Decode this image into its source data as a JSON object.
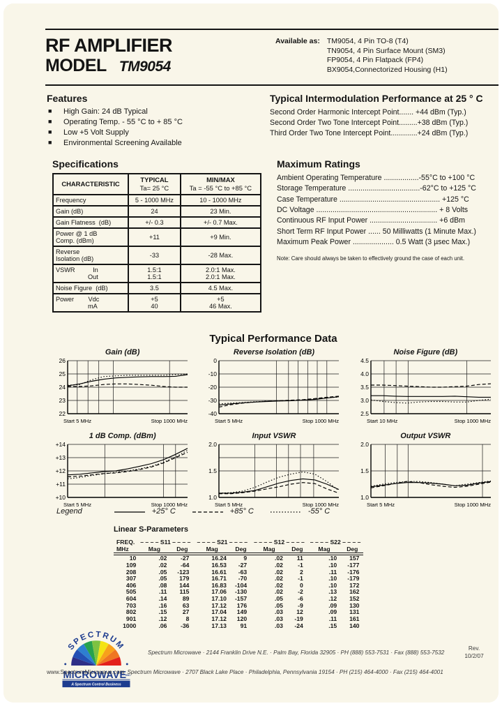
{
  "header": {
    "title_line1": "RF AMPLIFIER",
    "title_line2": "MODEL",
    "model": "TM9054",
    "available_label": "Available as:",
    "available": [
      "TM9054, 4 Pin TO-8 (T4)",
      "TN9054, 4 Pin Surface Mount (SM3)",
      "FP9054, 4 Pin Flatpack (FP4)",
      "BX9054,Connectorized Housing (H1)"
    ]
  },
  "features": {
    "title": "Features",
    "items": [
      "High Gain: 24 dB Typical",
      "Operating Temp. - 55 °C to + 85 °C",
      "Low +5 Volt Supply",
      "Environmental Screening Available"
    ]
  },
  "intermod": {
    "title": "Typical Intermodulation Performance at 25 ° C",
    "lines": [
      "Second Order Harmonic Intercept Point....... +44 dBm (Typ.)",
      "Second Order Two Tone Intercept Point.........+38 dBm (Typ.)",
      "Third Order Two Tone Intercept Point.............+24 dBm (Typ.)"
    ]
  },
  "specifications": {
    "title": "Specifications",
    "col1": "CHARACTERISTIC",
    "col2a": "TYPICAL",
    "col2b": "Ta= 25 °C",
    "col3a": "MIN/MAX",
    "col3b": "Ta = -55 °C to +85 °C",
    "rows": [
      {
        "c": [
          "Frequency"
        ],
        "t": [
          "5 - 1000 MHz"
        ],
        "m": [
          "10 - 1000 MHz"
        ]
      },
      {
        "c": [
          "Gain (dB)"
        ],
        "t": [
          "24"
        ],
        "m": [
          "23 Min."
        ]
      },
      {
        "c": [
          "Gain Flatness  (dB)"
        ],
        "t": [
          "+/- 0.3"
        ],
        "m": [
          "+/- 0.7 Max."
        ]
      },
      {
        "c": [
          "Power @ 1 dB",
          "Comp. (dBm)"
        ],
        "t": [
          "+11"
        ],
        "m": [
          "+9 Min."
        ]
      },
      {
        "c": [
          "Reverse",
          "Isolation (dB)"
        ],
        "t": [
          "-33"
        ],
        "m": [
          "-28 Max."
        ]
      },
      {
        "c": [
          "VSWR          In",
          "                  Out"
        ],
        "t": [
          "1.5:1",
          "1.5:1"
        ],
        "m": [
          "2.0:1 Max.",
          "2.0:1 Max."
        ]
      },
      {
        "c": [
          "Noise Figure  (dB)"
        ],
        "t": [
          "3.5"
        ],
        "m": [
          "4.5 Max."
        ]
      },
      {
        "c": [
          "Power        Vdc",
          "                  mA"
        ],
        "t": [
          "+5",
          "40"
        ],
        "m": [
          "+5",
          "46 Max."
        ]
      }
    ]
  },
  "ratings": {
    "title": "Maximum Ratings",
    "lines": [
      "Ambient Operating Temperature .................-55°C to +100 °C",
      "Storage Temperature ...................................-62°C to +125 °C",
      "Case Temperature ................................................. +125 °C",
      "DC Voltage ........................................................... + 8 Volts",
      "Continuous RF Input Power ................................. +6 dBm",
      "Short Term RF Input Power ...... 50 Milliwatts (1 Minute Max.)",
      "Maximum Peak Power .................... 0.5 Watt (3 µsec Max.)"
    ],
    "note": "Note: Care should always be taken to effectively ground the case of each unit."
  },
  "performance": {
    "title": "Typical Performance Data",
    "legend": {
      "label": "Legend",
      "items": [
        {
          "style": "solid",
          "label": "+25° C"
        },
        {
          "style": "dash",
          "label": "+85° C"
        },
        {
          "style": "dot",
          "label": "-55° C"
        }
      ]
    }
  },
  "chart_data": [
    {
      "type": "line",
      "title": "Gain (dB)",
      "ylim": [
        22,
        26
      ],
      "xstart": "Start 5 MHz",
      "xstop": "Stop 1000 MHz",
      "yticks": [
        {
          "v": 26,
          "l": "26"
        },
        {
          "v": 25,
          "l": "25"
        },
        {
          "v": 24,
          "l": "24"
        },
        {
          "v": 23,
          "l": "23"
        },
        {
          "v": 22,
          "l": "22"
        }
      ],
      "vgrid": [
        0.08,
        0.17,
        0.26,
        0.38,
        0.85
      ],
      "series": [
        {
          "name": "+25C",
          "style": "solid",
          "y": [
            24.1,
            24.25,
            24.45,
            24.6,
            24.7,
            24.75,
            24.78,
            24.8,
            24.8,
            24.82,
            24.95
          ]
        },
        {
          "name": "+85C",
          "style": "dash",
          "y": [
            24.05,
            24.05,
            24.1,
            24.2,
            24.25,
            24.25,
            24.2,
            24.15,
            24.05,
            24.0,
            24.0
          ]
        },
        {
          "name": "-55C",
          "style": "dot",
          "y": [
            24.15,
            24.2,
            24.55,
            24.8,
            24.85,
            24.9,
            24.9,
            24.9,
            24.9,
            24.95,
            25.0
          ]
        }
      ]
    },
    {
      "type": "line",
      "title": "Reverse Isolation (dB)",
      "ylim": [
        -40,
        0
      ],
      "xstart": "Start 5 MHz",
      "xstop": "Stop 1000 MHz",
      "yticks": [
        {
          "v": 0,
          "l": "0"
        },
        {
          "v": -10,
          "l": "-10"
        },
        {
          "v": -20,
          "l": "-20"
        },
        {
          "v": -30,
          "l": "-30"
        },
        {
          "v": -40,
          "l": "-40"
        }
      ],
      "vgrid": [
        0.48,
        0.58,
        0.66,
        0.74,
        0.82,
        0.9
      ],
      "series": [
        {
          "name": "+25C",
          "style": "solid",
          "y": [
            -33.5,
            -32.6,
            -31.8,
            -31.2,
            -30.8,
            -30.4,
            -30.2,
            -29.8,
            -29.2,
            -28.2,
            -27.2
          ]
        },
        {
          "name": "+85C",
          "style": "dash",
          "y": [
            -35.0,
            -33.2,
            -32.0,
            -31.2,
            -30.6,
            -30.2,
            -29.8,
            -29.4,
            -28.6,
            -27.6,
            -26.8
          ]
        },
        {
          "name": "-55C",
          "style": "dot",
          "y": [
            -32.6,
            -32.0,
            -31.6,
            -31.0,
            -30.6,
            -30.4,
            -30.0,
            -29.6,
            -28.8,
            -28.0,
            -27.4
          ]
        }
      ]
    },
    {
      "type": "line",
      "title": "Noise Figure (dB)",
      "ylim": [
        2.5,
        4.5
      ],
      "xstart": "Start 10 MHz",
      "xstop": "Stop 1000 MHz",
      "yticks": [
        {
          "v": 4.5,
          "l": "4.5"
        },
        {
          "v": 4.0,
          "l": "4.0"
        },
        {
          "v": 3.5,
          "l": "3.5"
        },
        {
          "v": 3.0,
          "l": "3.0"
        },
        {
          "v": 2.5,
          "l": "2.5"
        }
      ],
      "vgrid": [
        0.11,
        0.21,
        0.31,
        0.8
      ],
      "series": [
        {
          "name": "+85C",
          "style": "dash",
          "y": [
            3.58,
            3.58,
            3.56,
            3.54,
            3.52,
            3.5,
            3.5,
            3.52,
            3.54,
            3.6,
            3.63
          ]
        },
        {
          "name": "+25C",
          "style": "solid",
          "y": [
            3.18,
            3.18,
            3.16,
            3.15,
            3.15,
            3.15,
            3.15,
            3.16,
            3.14,
            3.12,
            3.12
          ]
        },
        {
          "name": "-55C",
          "style": "dot",
          "y": [
            3.02,
            2.96,
            2.92,
            2.9,
            2.94,
            2.96,
            2.96,
            2.94,
            2.94,
            3.0,
            3.05
          ]
        }
      ]
    },
    {
      "type": "line",
      "title": "1 dB Comp. (dBm)",
      "ylim": [
        10,
        14
      ],
      "xstart": "Start 5 MHz",
      "xstop": "Stop 1000 MHz",
      "yticks": [
        {
          "v": 14,
          "l": "+14"
        },
        {
          "v": 13,
          "l": "+13"
        },
        {
          "v": 12,
          "l": "+12"
        },
        {
          "v": 11,
          "l": "+11"
        },
        {
          "v": 10,
          "l": "+10"
        }
      ],
      "vgrid": [
        0.31,
        0.8,
        0.9
      ],
      "series": [
        {
          "name": "+25C",
          "style": "solid",
          "y": [
            11.7,
            11.75,
            11.85,
            11.95,
            12.0,
            12.15,
            12.35,
            12.55,
            12.85,
            13.25,
            13.7
          ]
        },
        {
          "name": "+85C",
          "style": "dash",
          "y": [
            11.55,
            11.6,
            11.7,
            11.8,
            11.85,
            11.95,
            12.1,
            12.3,
            12.6,
            13.0,
            13.4
          ]
        },
        {
          "name": "-55C",
          "style": "dot",
          "y": [
            11.4,
            11.5,
            11.65,
            11.78,
            11.9,
            12.0,
            12.15,
            12.35,
            12.65,
            13.05,
            13.55
          ]
        }
      ]
    },
    {
      "type": "line",
      "title": "Input VSWR",
      "ylim": [
        1.0,
        2.0
      ],
      "xstart": "Start 5 MHz",
      "xstop": "Stop 1000 MHz",
      "yticks": [
        {
          "v": 2.0,
          "l": "2.0"
        },
        {
          "v": 1.75,
          "l": ""
        },
        {
          "v": 1.5,
          "l": "1.5"
        },
        {
          "v": 1.0,
          "l": "1.0"
        }
      ],
      "vgrid": [
        0.3,
        0.48,
        0.58,
        0.68,
        0.79
      ],
      "series": [
        {
          "name": "+25C",
          "style": "solid",
          "y": [
            1.08,
            1.08,
            1.1,
            1.13,
            1.2,
            1.27,
            1.32,
            1.35,
            1.33,
            1.25,
            1.15
          ]
        },
        {
          "name": "+85C",
          "style": "dash",
          "y": [
            1.07,
            1.07,
            1.09,
            1.12,
            1.16,
            1.2,
            1.25,
            1.28,
            1.26,
            1.16,
            1.08
          ]
        },
        {
          "name": "-55C",
          "style": "dot",
          "y": [
            1.08,
            1.09,
            1.12,
            1.19,
            1.29,
            1.38,
            1.44,
            1.48,
            1.44,
            1.3,
            1.13
          ]
        }
      ]
    },
    {
      "type": "line",
      "title": "Output VSWR",
      "ylim": [
        1.0,
        2.0
      ],
      "xstart": "Start 5 MHz",
      "xstop": "Stop 1000 MHz",
      "yticks": [
        {
          "v": 2.0,
          "l": "2.0"
        },
        {
          "v": 1.5,
          "l": "1.5"
        },
        {
          "v": 1.0,
          "l": "1.0"
        }
      ],
      "vgrid": [
        0.12,
        0.22,
        0.31,
        0.93
      ],
      "series": [
        {
          "name": "+25C",
          "style": "solid",
          "y": [
            1.2,
            1.23,
            1.26,
            1.28,
            1.28,
            1.27,
            1.25,
            1.22,
            1.23,
            1.27,
            1.3
          ]
        },
        {
          "name": "+85C",
          "style": "dash",
          "y": [
            1.18,
            1.22,
            1.26,
            1.3,
            1.28,
            1.24,
            1.21,
            1.19,
            1.21,
            1.25,
            1.29
          ]
        },
        {
          "name": "-55C",
          "style": "dot",
          "y": [
            1.21,
            1.25,
            1.28,
            1.3,
            1.3,
            1.28,
            1.25,
            1.22,
            1.25,
            1.28,
            1.31
          ]
        }
      ]
    }
  ],
  "sparams": {
    "title": "Linear S-Parameters",
    "freq_label": "FREQ.",
    "freq_unit": "MHz",
    "group_headers": [
      "– – – – S11 – – – –",
      "– – – – S21 – – – –",
      "– – – – S12 – – – –",
      "– – – – S22 – – – –"
    ],
    "mag_label": "Mag",
    "deg_label": "Deg",
    "rows": [
      [
        "10",
        ".02",
        "-27",
        "16.24",
        "9",
        ".02",
        "11",
        ".10",
        "157"
      ],
      [
        "109",
        ".02",
        "-64",
        "16.53",
        "-27",
        ".02",
        "-1",
        ".10",
        "-177"
      ],
      [
        "208",
        ".05",
        "-123",
        "16.61",
        "-63",
        ".02",
        "2",
        ".11",
        "-176"
      ],
      [
        "307",
        ".05",
        "179",
        "16.71",
        "-70",
        ".02",
        "-1",
        ".10",
        "-179"
      ],
      [
        "406",
        ".08",
        "144",
        "16.83",
        "-104",
        ".02",
        "0",
        ".10",
        "172"
      ],
      [
        "505",
        ".11",
        "115",
        "17.06",
        "-130",
        ".02",
        "-2",
        ".13",
        "162"
      ],
      [
        "604",
        ".14",
        "89",
        "17.10",
        "-157",
        ".05",
        "-6",
        ".12",
        "152"
      ],
      [
        "703",
        ".16",
        "63",
        "17.12",
        "176",
        ".05",
        "-9",
        ".09",
        "130"
      ],
      [
        "802",
        ".15",
        "27",
        "17.04",
        "149",
        ".03",
        "12",
        ".09",
        "131"
      ],
      [
        "901",
        ".12",
        "8",
        "17.12",
        "120",
        ".03",
        "-19",
        ".11",
        "161"
      ],
      [
        "1000",
        ".06",
        "-36",
        "17.13",
        "91",
        ".03",
        "-24",
        ".15",
        "140"
      ]
    ]
  },
  "footer": {
    "logo": {
      "arc_text": "SPECTRUM",
      "name": "MICROWAVE",
      "inc": "INC.",
      "tagline": "A Spectrum Control Business",
      "blue": "#1d3c8f",
      "colors": [
        "#2e2f87",
        "#2450b4",
        "#2e7fd0",
        "#27a24d",
        "#7dc242",
        "#f4e312",
        "#f8a11b",
        "#ef7622",
        "#e3201b"
      ]
    },
    "address1": "Spectrum Microwave  ·  2144 Franklin Drive N.E.  ·  Palm Bay, Florida 32905  ·  PH (888) 553-7531  ·  Fax (888) 553-7532",
    "rev_label": "Rev.",
    "rev_date": "10/2/07",
    "url": "www.SpectrumMicrowave.com",
    "address2": "Spectrum Microwave  ·  2707 Black Lake Place  ·  Philadelphia, Pennsylvania 19154  ·  PH (215) 464-4000  ·  Fax (215) 464-4001"
  }
}
